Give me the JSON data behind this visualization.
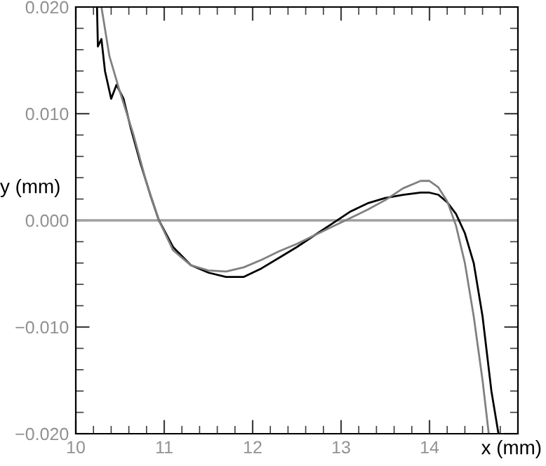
{
  "chart_data": {
    "type": "line",
    "xlabel": "x (mm)",
    "ylabel": "y (mm)",
    "xlim": [
      10,
      15
    ],
    "ylim": [
      -0.02,
      0.02
    ],
    "xticks": [
      10,
      11,
      12,
      13,
      14
    ],
    "yticks": [
      {
        "value": -0.02,
        "label": "−0.020"
      },
      {
        "value": -0.01,
        "label": "−0.010"
      },
      {
        "value": 0,
        "label": "0.000"
      },
      {
        "value": 0.01,
        "label": "0.010"
      },
      {
        "value": 0.02,
        "label": "0.020"
      }
    ],
    "grid": false,
    "legend": false,
    "marker": "none",
    "ref_lines": [
      {
        "axis": "y",
        "value": 0,
        "color": "#a0a0a0"
      }
    ],
    "series": [
      {
        "color": "#000000",
        "x": [
          10.24,
          10.25,
          10.29,
          10.33,
          10.4,
          10.46,
          10.54,
          10.62,
          10.73,
          10.85,
          10.94,
          11.1,
          11.3,
          11.5,
          11.7,
          11.9,
          12.1,
          12.3,
          12.5,
          12.7,
          12.9,
          13.1,
          13.3,
          13.5,
          13.7,
          13.9,
          14.0,
          14.1,
          14.2,
          14.3,
          14.4,
          14.5,
          14.6,
          14.7,
          14.78
        ],
        "values": [
          0.02,
          0.0163,
          0.017,
          0.014,
          0.0114,
          0.0127,
          0.0114,
          0.0087,
          0.0054,
          0.0022,
          0.0,
          -0.0025,
          -0.0042,
          -0.0049,
          -0.0053,
          -0.0053,
          -0.0045,
          -0.0035,
          -0.0025,
          -0.0014,
          -0.0003,
          0.0008,
          0.0016,
          0.0021,
          0.0024,
          0.0026,
          0.0026,
          0.0024,
          0.0017,
          0.0006,
          -0.0012,
          -0.004,
          -0.009,
          -0.016,
          -0.02
        ]
      },
      {
        "color": "#808080",
        "x": [
          10.29,
          10.38,
          10.49,
          10.65,
          10.8,
          10.94,
          11.1,
          11.3,
          11.5,
          11.7,
          11.9,
          12.1,
          12.3,
          12.5,
          12.7,
          12.9,
          13.1,
          13.3,
          13.5,
          13.7,
          13.9,
          14.0,
          14.1,
          14.2,
          14.3,
          14.4,
          14.5,
          14.6,
          14.67
        ],
        "values": [
          0.02,
          0.0154,
          0.0123,
          0.0081,
          0.0035,
          0.0,
          -0.0028,
          -0.0042,
          -0.0047,
          -0.0048,
          -0.0044,
          -0.0037,
          -0.0029,
          -0.0022,
          -0.0014,
          -0.0006,
          0.0002,
          0.001,
          0.0019,
          0.003,
          0.0037,
          0.0037,
          0.0031,
          0.0018,
          -0.0005,
          -0.004,
          -0.009,
          -0.015,
          -0.02
        ]
      }
    ]
  }
}
